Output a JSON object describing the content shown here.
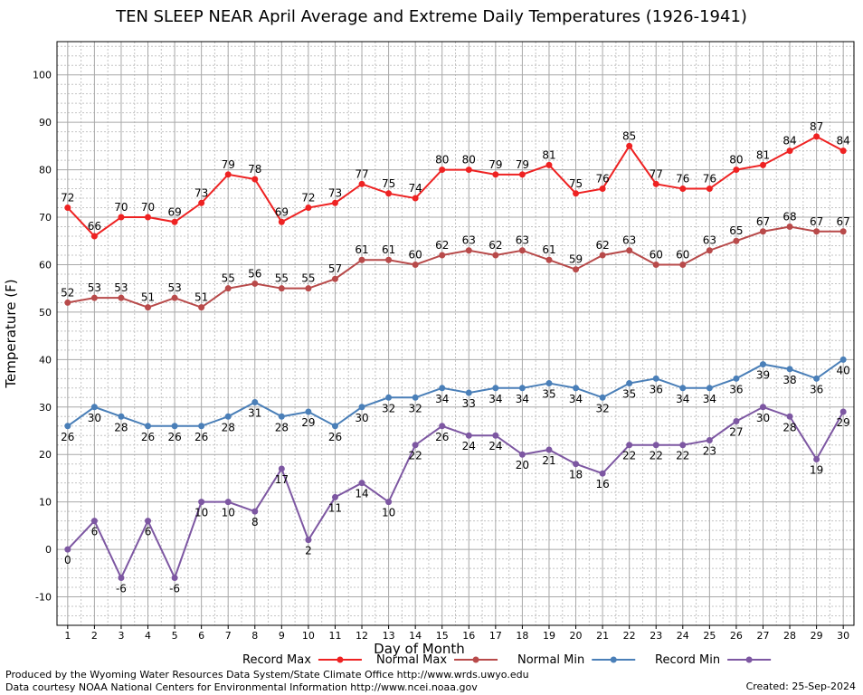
{
  "title": "TEN SLEEP NEAR April Average and Extreme Daily Temperatures (1926-1941)",
  "credit_line1": "Produced by the Wyoming Water Resources Data System/State Climate Office http://www.wrds.uwyo.edu",
  "credit_line2": "Data courtesy NOAA National Centers for Environmental Information http://www.ncei.noaa.gov",
  "created": "Created:  25-Sep-2024",
  "chart_data": {
    "type": "line",
    "title": "TEN SLEEP NEAR April Average and Extreme Daily Temperatures (1926-1941)",
    "xlabel": "Day of Month",
    "ylabel": "Temperature (F)",
    "x": [
      1,
      2,
      3,
      4,
      5,
      6,
      7,
      8,
      9,
      10,
      11,
      12,
      13,
      14,
      15,
      16,
      17,
      18,
      19,
      20,
      21,
      22,
      23,
      24,
      25,
      26,
      27,
      28,
      29,
      30
    ],
    "xlim": [
      0.6,
      30.4
    ],
    "ylim": [
      -16,
      107
    ],
    "yticks": [
      -10,
      0,
      10,
      20,
      30,
      40,
      50,
      60,
      70,
      80,
      90,
      100
    ],
    "grid": true,
    "legend": "bottom",
    "series": [
      {
        "name": "Record Max",
        "color": "#ee2222",
        "label_pos": "above",
        "values": [
          72,
          66,
          70,
          70,
          69,
          73,
          79,
          78,
          69,
          72,
          73,
          77,
          75,
          74,
          80,
          80,
          79,
          79,
          81,
          75,
          76,
          85,
          77,
          76,
          76,
          80,
          81,
          84,
          87,
          84
        ]
      },
      {
        "name": "Normal Max",
        "color": "#b84a4a",
        "label_pos": "above",
        "values": [
          52,
          53,
          53,
          51,
          53,
          51,
          55,
          56,
          55,
          55,
          57,
          61,
          61,
          60,
          62,
          63,
          62,
          63,
          61,
          59,
          62,
          63,
          60,
          60,
          63,
          65,
          67,
          68,
          67,
          67
        ]
      },
      {
        "name": "Normal Min",
        "color": "#4a7fb8",
        "label_pos": "below",
        "values": [
          26,
          30,
          28,
          26,
          26,
          26,
          28,
          31,
          28,
          29,
          26,
          30,
          32,
          32,
          34,
          33,
          34,
          34,
          35,
          34,
          32,
          35,
          36,
          34,
          34,
          36,
          39,
          38,
          36,
          40
        ]
      },
      {
        "name": "Record Min",
        "color": "#7d57a2",
        "label_pos": "below",
        "values": [
          0,
          6,
          -6,
          6,
          -6,
          10,
          10,
          8,
          17,
          2,
          11,
          14,
          10,
          22,
          26,
          24,
          24,
          20,
          21,
          18,
          16,
          22,
          22,
          22,
          23,
          27,
          30,
          28,
          19,
          29
        ]
      }
    ]
  }
}
